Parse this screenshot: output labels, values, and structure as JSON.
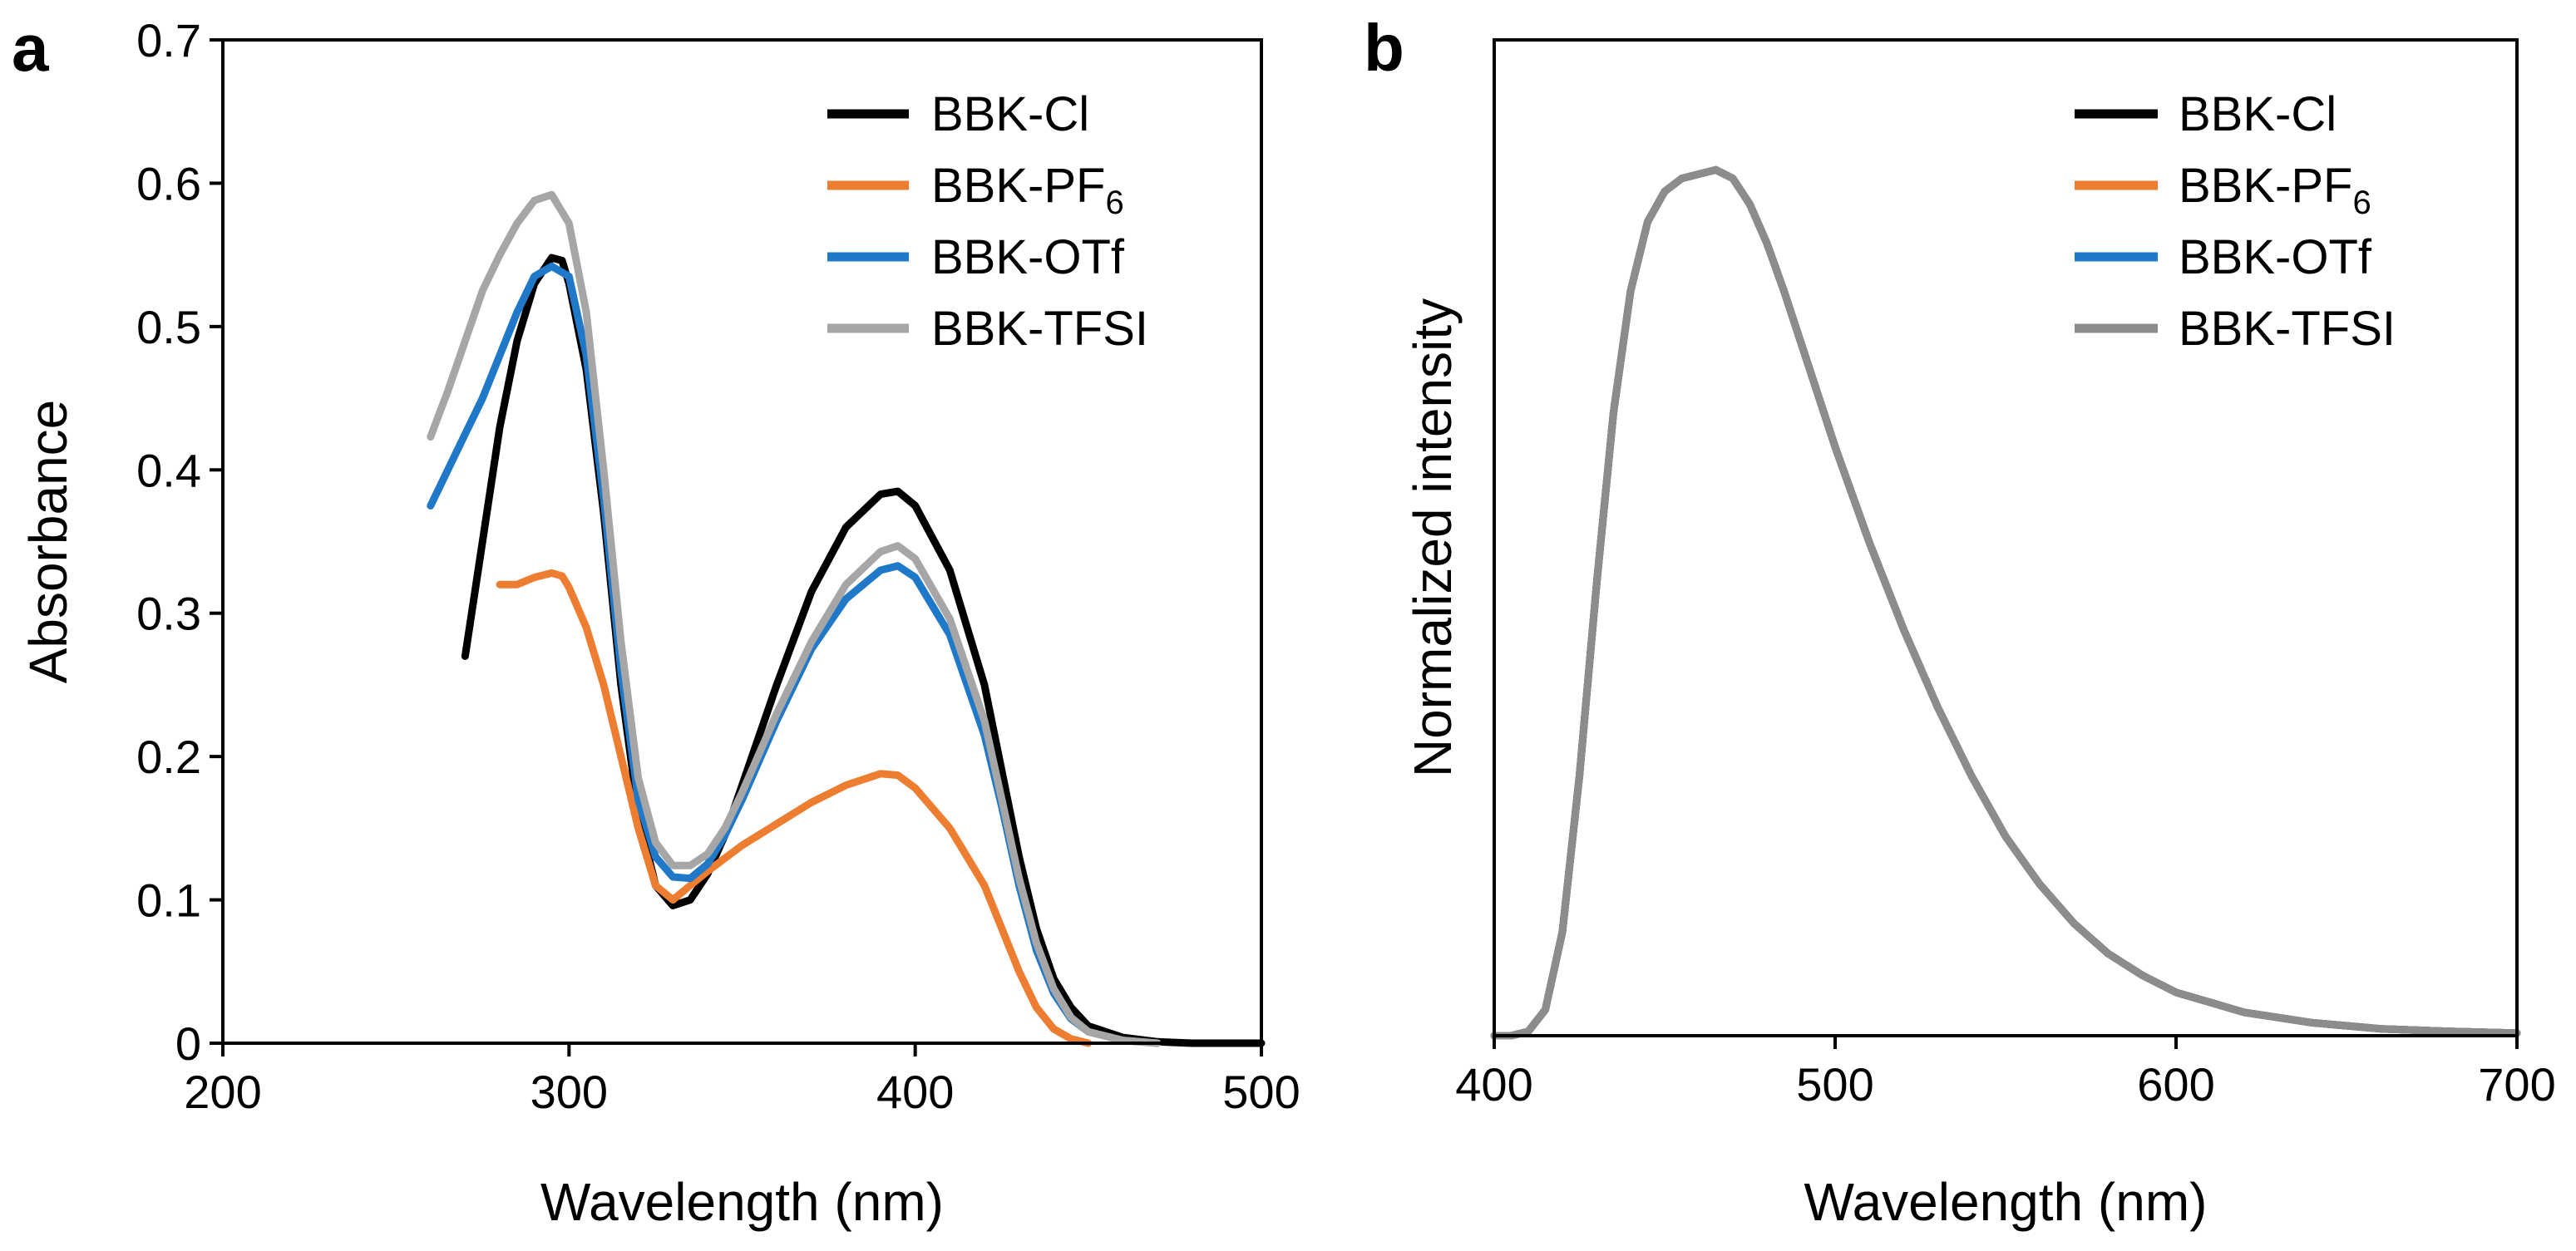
{
  "chart_data": [
    {
      "panel": "a",
      "type": "line",
      "xlabel": "Wavelength (nm)",
      "ylabel": "Absorbance",
      "xlim": [
        200,
        500
      ],
      "ylim": [
        0,
        0.7
      ],
      "xticks": [
        "200",
        "300",
        "400",
        "500"
      ],
      "yticks": [
        "0",
        "0.1",
        "0.2",
        "0.3",
        "0.4",
        "0.5",
        "0.6",
        "0.7"
      ],
      "legend_position": "top-right",
      "series": [
        {
          "name": "BBK-Cl",
          "sub": "",
          "color": "#000000",
          "x": [
            270,
            275,
            280,
            285,
            290,
            295,
            298,
            300,
            305,
            310,
            315,
            320,
            325,
            330,
            335,
            340,
            345,
            350,
            360,
            370,
            380,
            390,
            395,
            400,
            410,
            420,
            425,
            430,
            435,
            440,
            445,
            450,
            460,
            470,
            480,
            500
          ],
          "y": [
            0.27,
            0.35,
            0.43,
            0.49,
            0.53,
            0.548,
            0.546,
            0.53,
            0.47,
            0.37,
            0.25,
            0.16,
            0.11,
            0.096,
            0.1,
            0.118,
            0.145,
            0.18,
            0.25,
            0.315,
            0.36,
            0.383,
            0.385,
            0.375,
            0.33,
            0.25,
            0.19,
            0.13,
            0.08,
            0.045,
            0.025,
            0.012,
            0.004,
            0.001,
            0.0,
            0.0
          ]
        },
        {
          "name": "BBK-PF",
          "sub": "6",
          "color": "#ed7d31",
          "x": [
            280,
            285,
            290,
            295,
            298,
            300,
            305,
            310,
            315,
            320,
            325,
            330,
            335,
            340,
            350,
            360,
            370,
            380,
            390,
            395,
            400,
            410,
            420,
            425,
            430,
            435,
            440,
            445,
            450
          ],
          "y": [
            0.32,
            0.32,
            0.325,
            0.328,
            0.326,
            0.318,
            0.29,
            0.25,
            0.2,
            0.15,
            0.11,
            0.1,
            0.11,
            0.12,
            0.138,
            0.153,
            0.168,
            0.18,
            0.188,
            0.187,
            0.178,
            0.15,
            0.11,
            0.08,
            0.05,
            0.025,
            0.01,
            0.003,
            0.0
          ]
        },
        {
          "name": "BBK-OTf",
          "sub": "",
          "color": "#1f78c8",
          "x": [
            260,
            265,
            270,
            275,
            280,
            285,
            290,
            295,
            300,
            305,
            310,
            315,
            320,
            325,
            330,
            335,
            340,
            345,
            350,
            360,
            370,
            380,
            390,
            395,
            400,
            410,
            420,
            425,
            430,
            435,
            440,
            445,
            450,
            460,
            470
          ],
          "y": [
            0.375,
            0.4,
            0.425,
            0.45,
            0.48,
            0.51,
            0.535,
            0.542,
            0.535,
            0.48,
            0.38,
            0.26,
            0.17,
            0.13,
            0.116,
            0.115,
            0.125,
            0.145,
            0.17,
            0.225,
            0.275,
            0.31,
            0.33,
            0.333,
            0.325,
            0.285,
            0.215,
            0.165,
            0.11,
            0.065,
            0.035,
            0.017,
            0.008,
            0.002,
            0.0
          ]
        },
        {
          "name": "BBK-TFSI",
          "sub": "",
          "color": "#a6a6a6",
          "x": [
            260,
            265,
            270,
            275,
            280,
            285,
            290,
            295,
            300,
            305,
            310,
            315,
            320,
            325,
            330,
            335,
            340,
            345,
            350,
            360,
            370,
            380,
            390,
            395,
            400,
            410,
            420,
            425,
            430,
            435,
            440,
            445,
            450,
            460,
            470
          ],
          "y": [
            0.423,
            0.455,
            0.49,
            0.525,
            0.55,
            0.572,
            0.588,
            0.592,
            0.572,
            0.51,
            0.4,
            0.28,
            0.185,
            0.14,
            0.124,
            0.124,
            0.132,
            0.15,
            0.175,
            0.23,
            0.28,
            0.32,
            0.343,
            0.347,
            0.338,
            0.296,
            0.225,
            0.17,
            0.115,
            0.07,
            0.038,
            0.018,
            0.008,
            0.002,
            0.0
          ]
        }
      ]
    },
    {
      "panel": "b",
      "type": "line",
      "xlabel": "Wavelength (nm)",
      "ylabel": "Normalized intensity",
      "xlim": [
        400,
        700
      ],
      "ylim": [
        0,
        1.15
      ],
      "xticks": [
        "400",
        "500",
        "600",
        "700"
      ],
      "yticks": [],
      "legend_position": "top-right",
      "series": [
        {
          "name": "BBK-Cl",
          "sub": "",
          "color": "#000000",
          "x": [
            400,
            405,
            410,
            415,
            420,
            425,
            430,
            435,
            440,
            445,
            450,
            455,
            460,
            465,
            470,
            475,
            480,
            485,
            490,
            495,
            500,
            510,
            520,
            530,
            540,
            550,
            560,
            570,
            580,
            590,
            600,
            620,
            640,
            660,
            680,
            700
          ],
          "y": [
            0.0,
            0.0,
            0.005,
            0.03,
            0.12,
            0.3,
            0.52,
            0.72,
            0.86,
            0.94,
            0.975,
            0.99,
            0.995,
            1.0,
            0.99,
            0.96,
            0.915,
            0.86,
            0.8,
            0.74,
            0.68,
            0.57,
            0.47,
            0.38,
            0.3,
            0.23,
            0.175,
            0.13,
            0.095,
            0.07,
            0.05,
            0.027,
            0.015,
            0.008,
            0.005,
            0.003
          ]
        },
        {
          "name": "BBK-PF",
          "sub": "6",
          "color": "#ed7d31",
          "x": [
            400,
            405,
            410,
            415,
            420,
            425,
            430,
            435,
            440,
            445,
            450,
            455,
            460,
            465,
            470,
            475,
            480,
            485,
            490,
            495,
            500,
            510,
            520,
            530,
            540,
            550,
            560,
            570,
            580,
            590,
            600,
            620,
            640,
            660,
            680,
            700
          ],
          "y": [
            0.0,
            0.0,
            0.005,
            0.03,
            0.12,
            0.3,
            0.52,
            0.72,
            0.86,
            0.94,
            0.975,
            0.99,
            0.995,
            1.0,
            0.99,
            0.96,
            0.915,
            0.86,
            0.8,
            0.74,
            0.68,
            0.57,
            0.47,
            0.38,
            0.3,
            0.23,
            0.175,
            0.13,
            0.095,
            0.07,
            0.05,
            0.027,
            0.015,
            0.008,
            0.005,
            0.003
          ]
        },
        {
          "name": "BBK-OTf",
          "sub": "",
          "color": "#1f78c8",
          "x": [
            400,
            405,
            410,
            415,
            420,
            425,
            430,
            435,
            440,
            445,
            450,
            455,
            460,
            465,
            470,
            475,
            480,
            485,
            490,
            495,
            500,
            510,
            520,
            530,
            540,
            550,
            560,
            570,
            580,
            590,
            600,
            620,
            640,
            660,
            680,
            700
          ],
          "y": [
            0.0,
            0.0,
            0.005,
            0.03,
            0.12,
            0.3,
            0.52,
            0.72,
            0.86,
            0.94,
            0.975,
            0.99,
            0.995,
            1.0,
            0.99,
            0.96,
            0.915,
            0.86,
            0.8,
            0.74,
            0.68,
            0.57,
            0.47,
            0.38,
            0.3,
            0.23,
            0.175,
            0.13,
            0.095,
            0.07,
            0.05,
            0.027,
            0.015,
            0.008,
            0.005,
            0.003
          ]
        },
        {
          "name": "BBK-TFSI",
          "sub": "",
          "color": "#8c8c8c",
          "x": [
            400,
            405,
            410,
            415,
            420,
            425,
            430,
            435,
            440,
            445,
            450,
            455,
            460,
            465,
            470,
            475,
            480,
            485,
            490,
            495,
            500,
            510,
            520,
            530,
            540,
            550,
            560,
            570,
            580,
            590,
            600,
            620,
            640,
            660,
            680,
            700
          ],
          "y": [
            0.0,
            0.0,
            0.005,
            0.03,
            0.12,
            0.3,
            0.52,
            0.72,
            0.86,
            0.94,
            0.975,
            0.99,
            0.995,
            1.0,
            0.99,
            0.96,
            0.915,
            0.86,
            0.8,
            0.74,
            0.68,
            0.57,
            0.47,
            0.38,
            0.3,
            0.23,
            0.175,
            0.13,
            0.095,
            0.07,
            0.05,
            0.027,
            0.015,
            0.008,
            0.005,
            0.003
          ]
        }
      ]
    }
  ]
}
